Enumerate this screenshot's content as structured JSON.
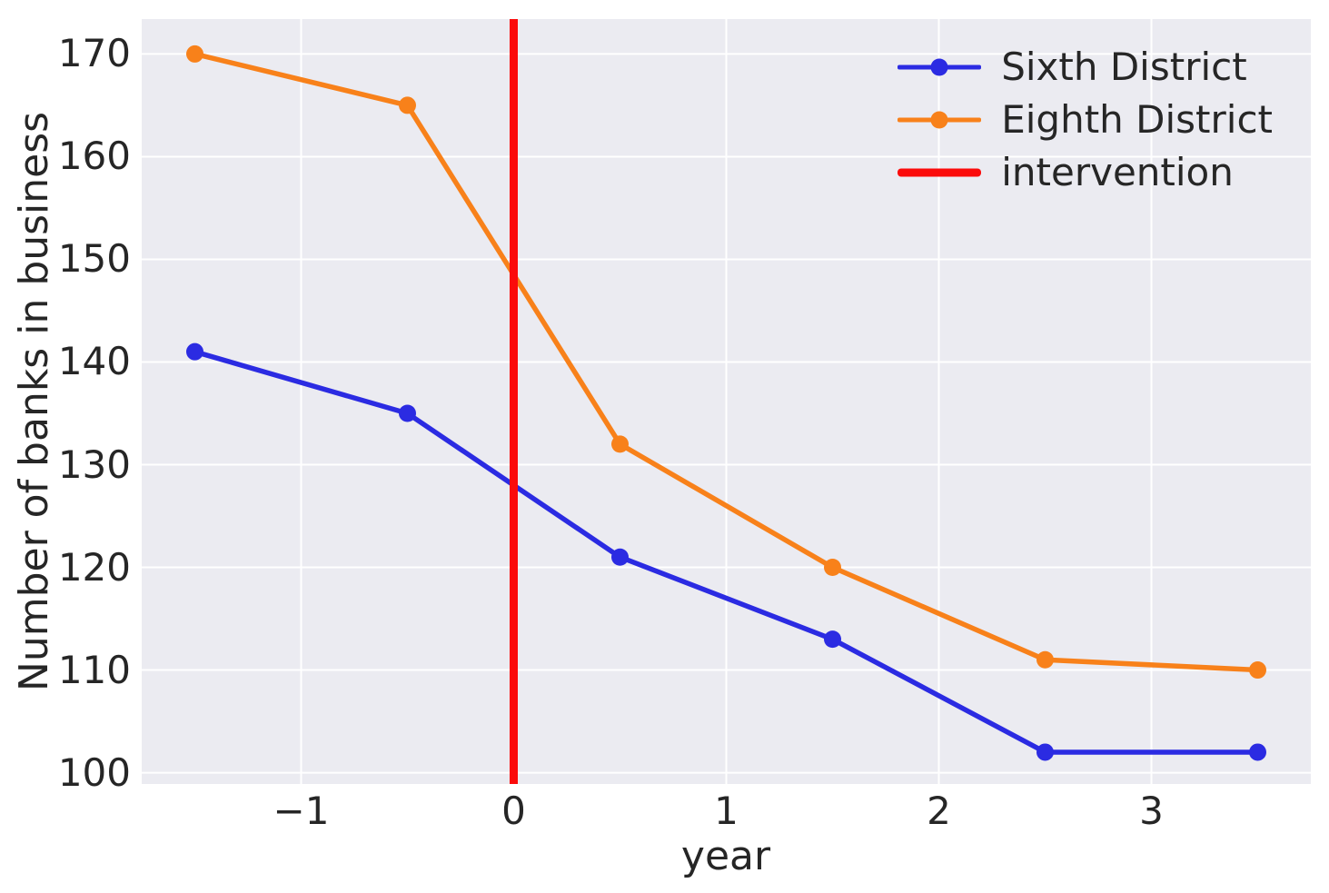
{
  "chart_data": {
    "type": "line",
    "title": "",
    "xlabel": "year",
    "ylabel": "Number of banks in business",
    "x": [
      -1.5,
      -0.5,
      0.5,
      1.5,
      2.5,
      3.5
    ],
    "series": [
      {
        "name": "Sixth District",
        "color": "#2b2be2",
        "values": [
          141,
          135,
          121,
          113,
          102,
          102
        ]
      },
      {
        "name": "Eighth District",
        "color": "#f8811a",
        "values": [
          170,
          165,
          132,
          120,
          111,
          110
        ]
      }
    ],
    "intervention": {
      "label": "intervention",
      "x": 0,
      "color": "#fb0b0b"
    },
    "xlim": [
      -1.75,
      3.75
    ],
    "ylim": [
      98.9,
      173.4
    ],
    "xticks": [
      -1,
      0,
      1,
      2,
      3
    ],
    "xtick_labels": [
      "−1",
      "0",
      "1",
      "2",
      "3"
    ],
    "yticks": [
      100,
      110,
      120,
      130,
      140,
      150,
      160,
      170
    ],
    "ytick_labels": [
      "100",
      "110",
      "120",
      "130",
      "140",
      "150",
      "160",
      "170"
    ],
    "grid": true,
    "legend_position": "upper right",
    "style": {
      "figure_bg": "#ffffff",
      "plot_bg": "#ebebf1",
      "grid_color": "#ffffff",
      "text_color": "#262626",
      "line_width": 5.5,
      "marker_radius": 9.5,
      "intervention_line_width": 9
    }
  }
}
